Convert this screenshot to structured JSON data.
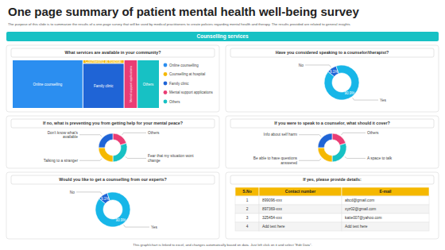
{
  "header": {
    "title": "One page summary of patient mental health well-being survey",
    "subtitle": "The purpose of this slide is to summarize the results of a one-page survey that will be used by medical practitioners to create policies regarding mental health and therapy. The results provided are related to general insights",
    "section": "Counselling services",
    "footer": "This graph/chart is linked to excel, and changes automatically based on data. Just left click on it and select \"Edit Data\"."
  },
  "chart_data": [
    {
      "type": "treemap",
      "title": "What services are available in your community?",
      "categories": [
        "Online counselling",
        "Counselling at hospital",
        "Family clinic",
        "Mental support applications",
        "Others"
      ],
      "values": [
        48,
        2,
        26,
        9,
        15
      ],
      "colors": [
        "#2b8ef0",
        "#f5b800",
        "#1f64d6",
        "#ea3d74",
        "#17c1c4"
      ],
      "legend": "right"
    },
    {
      "type": "donut",
      "title": "Have you considered speaking to a counselor/therapist?",
      "categories": [
        "No",
        "Yes"
      ],
      "values": [
        9.1,
        90.9
      ],
      "value_labels": [
        "9.1%",
        "90.9%"
      ],
      "colors": [
        "#1f64d6",
        "#17b6e8"
      ],
      "data_labels": true
    },
    {
      "type": "donut",
      "title": "If no, what is preventing you from getting help for your mental peace?",
      "categories": [
        "Others",
        "Fear that my situation wont change",
        "Talking to a stranger",
        "Don't know what's available"
      ],
      "values": [
        20,
        30,
        25,
        25
      ],
      "colors": [
        "#ea3d74",
        "#17c1c4",
        "#f5b800",
        "#1f64d6"
      ],
      "data_labels": false
    },
    {
      "type": "donut",
      "title": "If you were to speak to a counselor, what should it cover?",
      "categories": [
        "Others",
        "A space to talk",
        "Be able to have questions answered",
        "Info about self harm"
      ],
      "values": [
        20,
        30,
        25,
        25
      ],
      "colors": [
        "#ea3d74",
        "#17c1c4",
        "#f5b800",
        "#1f64d6"
      ],
      "data_labels": false
    },
    {
      "type": "donut",
      "title": "Would you like to get a counselling from our experts?",
      "categories": [
        "No",
        "Yes"
      ],
      "values": [
        9.1,
        90.9
      ],
      "value_labels": [
        "9.1%",
        "90.9%"
      ],
      "colors": [
        "#1f64d6",
        "#17b6e8"
      ],
      "data_labels": true
    }
  ],
  "table": {
    "title": "If yes, please provide details:",
    "columns": [
      "S.No",
      "Contact number",
      "E-mail"
    ],
    "rows": [
      [
        1,
        "899096-xxx",
        "abcd@gmail.com"
      ],
      [
        2,
        "897369-xxx",
        "xyz02@gmail.com"
      ],
      [
        3,
        "325454-xxx",
        "katie007@yahoo.com"
      ],
      [
        4,
        "Add text here",
        "Add text here"
      ]
    ]
  }
}
